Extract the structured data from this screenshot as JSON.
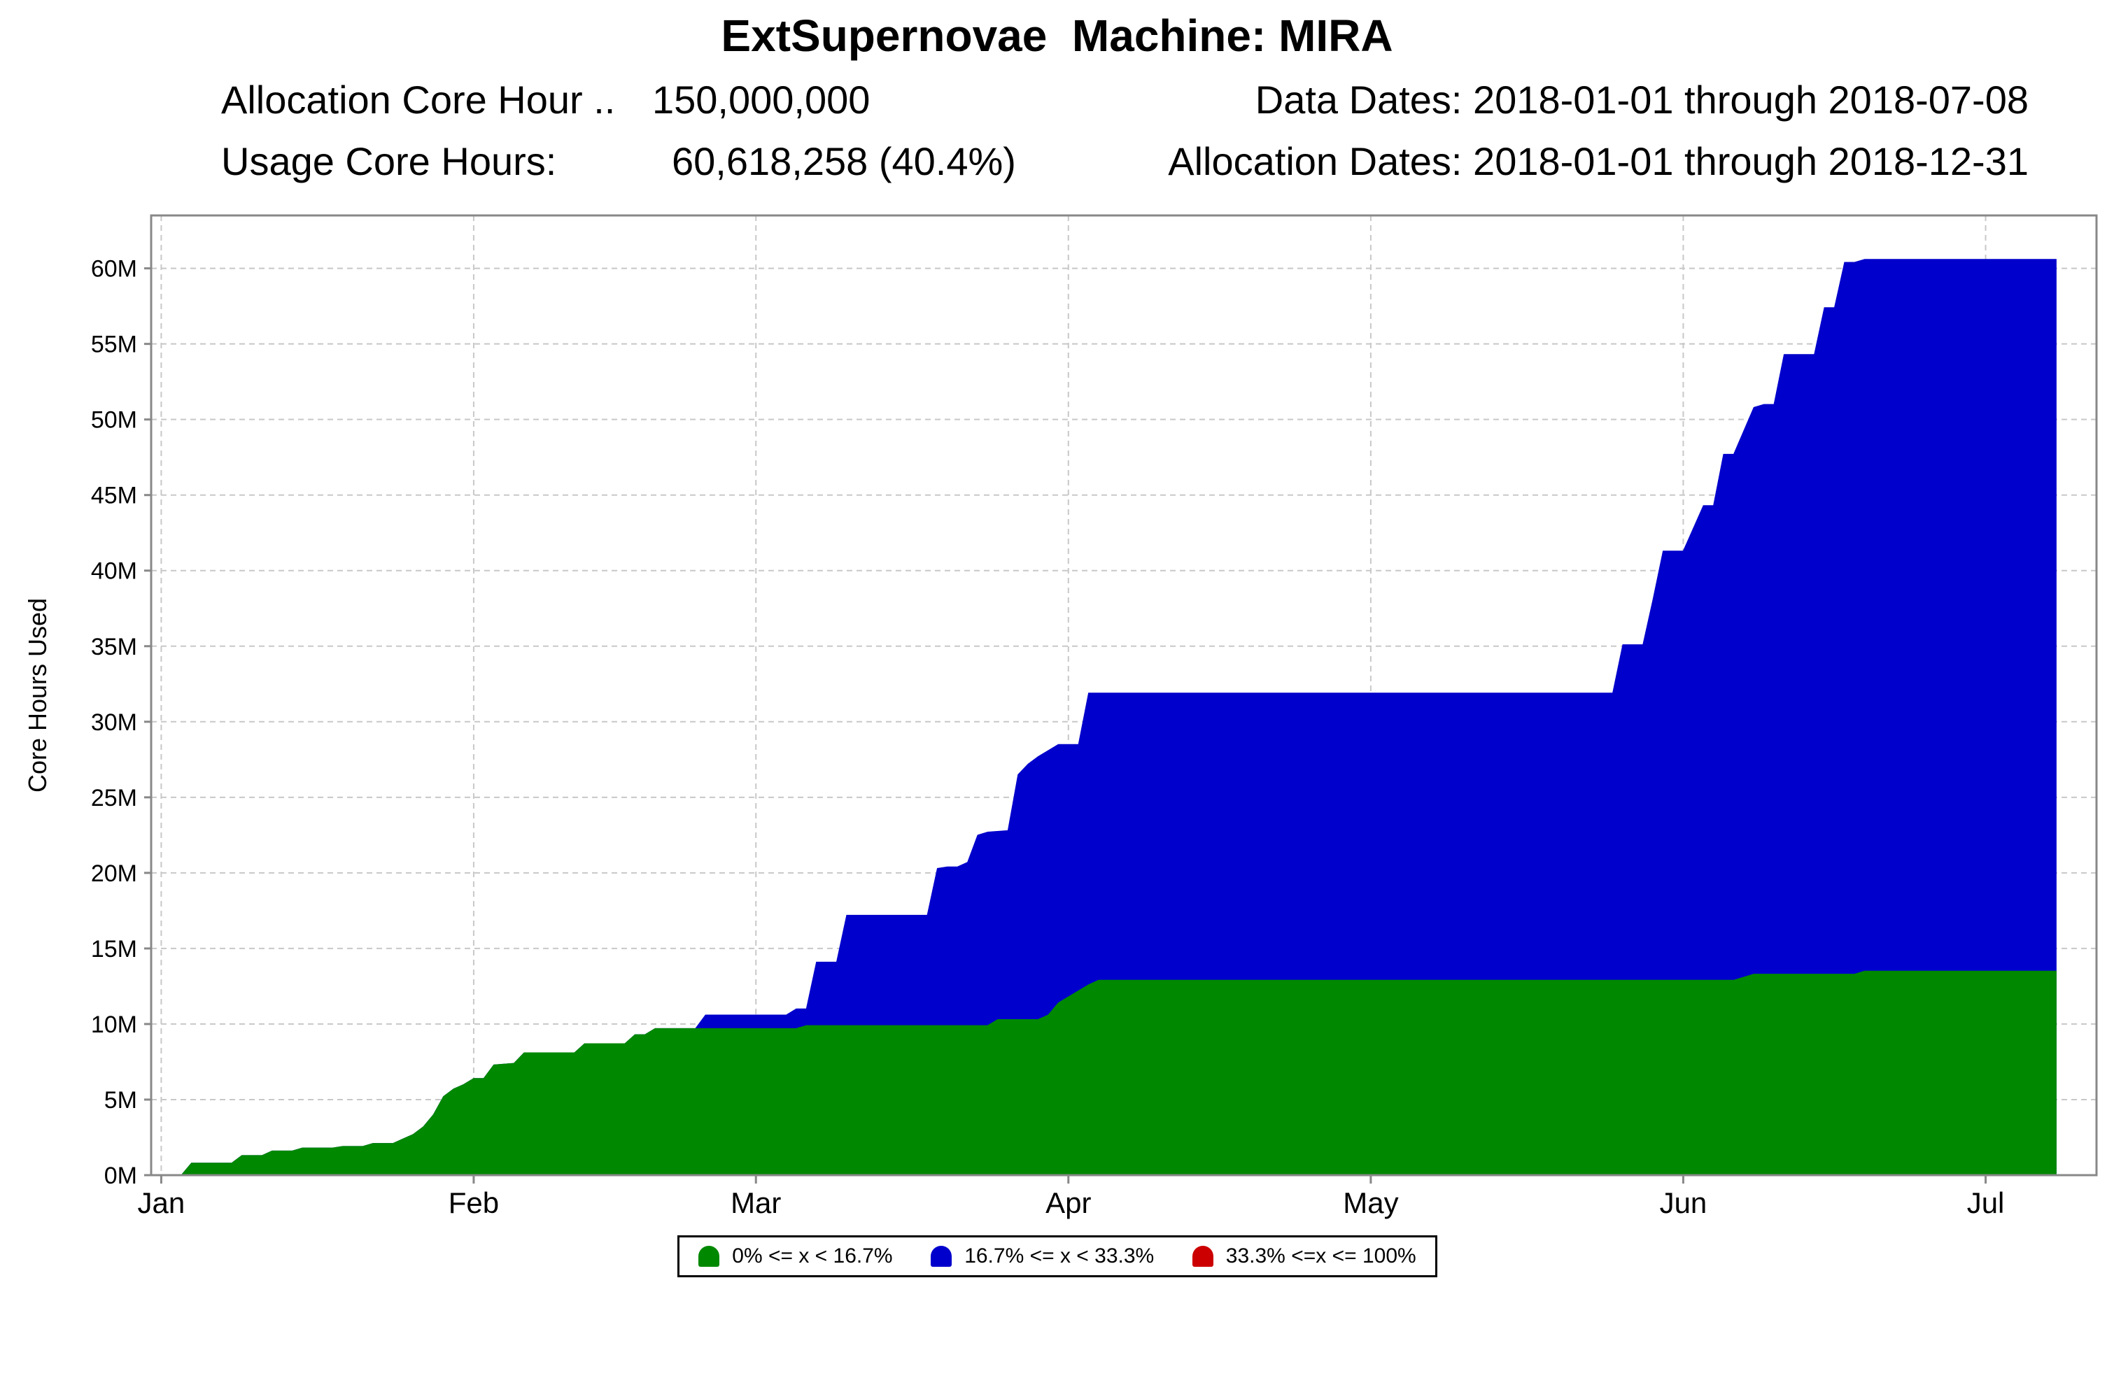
{
  "header": {
    "title": "ExtSupernovae  Machine: MIRA",
    "allocation_label": "Allocation Core Hour ..",
    "allocation_value": "150,000,000",
    "usage_label": "Usage Core Hours:",
    "usage_value": "60,618,258 (40.4%)",
    "data_dates": "Data Dates: 2018-01-01 through 2018-07-08",
    "allocation_dates": "Allocation Dates: 2018-01-01 through 2018-12-31"
  },
  "chart_data": {
    "type": "area",
    "title": "ExtSupernovae  Machine: MIRA",
    "xlabel": "",
    "ylabel": "Core Hours Used",
    "x_range": [
      "2018-01-01",
      "2018-07-08"
    ],
    "ylim": [
      0,
      63500000
    ],
    "y_ticks": [
      0,
      5000000,
      10000000,
      15000000,
      20000000,
      25000000,
      30000000,
      35000000,
      40000000,
      45000000,
      50000000,
      55000000,
      60000000
    ],
    "y_tick_labels": [
      "0M",
      "5M",
      "10M",
      "15M",
      "20M",
      "25M",
      "30M",
      "35M",
      "40M",
      "45M",
      "50M",
      "55M",
      "60M"
    ],
    "x_tick_dates": [
      "2018-01-01",
      "2018-02-01",
      "2018-03-01",
      "2018-04-01",
      "2018-05-01",
      "2018-06-01",
      "2018-07-01"
    ],
    "x_tick_labels": [
      "Jan",
      "Feb",
      "Mar",
      "Apr",
      "May",
      "Jun",
      "Jul"
    ],
    "grid": true,
    "legend_position": "bottom",
    "stacked": false,
    "series": [
      {
        "name": "16.7% <= x < 33.3%",
        "color": "#0000cc",
        "points": [
          [
            "2018-01-01",
            0
          ],
          [
            "2018-01-03",
            0
          ],
          [
            "2018-01-04",
            800000
          ],
          [
            "2018-01-08",
            800000
          ],
          [
            "2018-01-09",
            1300000
          ],
          [
            "2018-01-11",
            1300000
          ],
          [
            "2018-01-12",
            1600000
          ],
          [
            "2018-01-14",
            1600000
          ],
          [
            "2018-01-15",
            1800000
          ],
          [
            "2018-01-18",
            1800000
          ],
          [
            "2018-01-19",
            1900000
          ],
          [
            "2018-01-21",
            1900000
          ],
          [
            "2018-01-22",
            2100000
          ],
          [
            "2018-01-24",
            2100000
          ],
          [
            "2018-01-25",
            2400000
          ],
          [
            "2018-01-26",
            2700000
          ],
          [
            "2018-01-27",
            3200000
          ],
          [
            "2018-01-28",
            4000000
          ],
          [
            "2018-01-29",
            5200000
          ],
          [
            "2018-01-30",
            5700000
          ],
          [
            "2018-01-31",
            6000000
          ],
          [
            "2018-02-01",
            6400000
          ],
          [
            "2018-02-02",
            6400000
          ],
          [
            "2018-02-03",
            7300000
          ],
          [
            "2018-02-05",
            7400000
          ],
          [
            "2018-02-06",
            8100000
          ],
          [
            "2018-02-11",
            8100000
          ],
          [
            "2018-02-12",
            8700000
          ],
          [
            "2018-02-16",
            8700000
          ],
          [
            "2018-02-17",
            9300000
          ],
          [
            "2018-02-18",
            9300000
          ],
          [
            "2018-02-19",
            9700000
          ],
          [
            "2018-02-23",
            9700000
          ],
          [
            "2018-02-24",
            10600000
          ],
          [
            "2018-03-04",
            10600000
          ],
          [
            "2018-03-05",
            11000000
          ],
          [
            "2018-03-06",
            11000000
          ],
          [
            "2018-03-07",
            14100000
          ],
          [
            "2018-03-09",
            14100000
          ],
          [
            "2018-03-10",
            17200000
          ],
          [
            "2018-03-18",
            17200000
          ],
          [
            "2018-03-19",
            20300000
          ],
          [
            "2018-03-20",
            20400000
          ],
          [
            "2018-03-21",
            20400000
          ],
          [
            "2018-03-22",
            20700000
          ],
          [
            "2018-03-23",
            22500000
          ],
          [
            "2018-03-24",
            22700000
          ],
          [
            "2018-03-26",
            22800000
          ],
          [
            "2018-03-27",
            26500000
          ],
          [
            "2018-03-28",
            27200000
          ],
          [
            "2018-03-29",
            27700000
          ],
          [
            "2018-03-30",
            28100000
          ],
          [
            "2018-03-31",
            28500000
          ],
          [
            "2018-04-02",
            28500000
          ],
          [
            "2018-04-03",
            31900000
          ],
          [
            "2018-05-25",
            31900000
          ],
          [
            "2018-05-26",
            35100000
          ],
          [
            "2018-05-28",
            35100000
          ],
          [
            "2018-05-29",
            38100000
          ],
          [
            "2018-05-30",
            41300000
          ],
          [
            "2018-06-01",
            41300000
          ],
          [
            "2018-06-03",
            44300000
          ],
          [
            "2018-06-04",
            44300000
          ],
          [
            "2018-06-05",
            47700000
          ],
          [
            "2018-06-06",
            47700000
          ],
          [
            "2018-06-08",
            50800000
          ],
          [
            "2018-06-09",
            51000000
          ],
          [
            "2018-06-10",
            51000000
          ],
          [
            "2018-06-11",
            54300000
          ],
          [
            "2018-06-14",
            54300000
          ],
          [
            "2018-06-15",
            57400000
          ],
          [
            "2018-06-16",
            57400000
          ],
          [
            "2018-06-17",
            60400000
          ],
          [
            "2018-06-18",
            60400000
          ],
          [
            "2018-06-19",
            60600000
          ],
          [
            "2018-07-08",
            60600000
          ]
        ]
      },
      {
        "name": "0% <= x < 16.7%",
        "color": "#008800",
        "points": [
          [
            "2018-01-01",
            0
          ],
          [
            "2018-01-03",
            0
          ],
          [
            "2018-01-04",
            800000
          ],
          [
            "2018-01-08",
            800000
          ],
          [
            "2018-01-09",
            1300000
          ],
          [
            "2018-01-11",
            1300000
          ],
          [
            "2018-01-12",
            1600000
          ],
          [
            "2018-01-14",
            1600000
          ],
          [
            "2018-01-15",
            1800000
          ],
          [
            "2018-01-18",
            1800000
          ],
          [
            "2018-01-19",
            1900000
          ],
          [
            "2018-01-21",
            1900000
          ],
          [
            "2018-01-22",
            2100000
          ],
          [
            "2018-01-24",
            2100000
          ],
          [
            "2018-01-25",
            2400000
          ],
          [
            "2018-01-26",
            2700000
          ],
          [
            "2018-01-27",
            3200000
          ],
          [
            "2018-01-28",
            4000000
          ],
          [
            "2018-01-29",
            5200000
          ],
          [
            "2018-01-30",
            5700000
          ],
          [
            "2018-01-31",
            6000000
          ],
          [
            "2018-02-01",
            6400000
          ],
          [
            "2018-02-02",
            6400000
          ],
          [
            "2018-02-03",
            7300000
          ],
          [
            "2018-02-05",
            7400000
          ],
          [
            "2018-02-06",
            8100000
          ],
          [
            "2018-02-11",
            8100000
          ],
          [
            "2018-02-12",
            8700000
          ],
          [
            "2018-02-16",
            8700000
          ],
          [
            "2018-02-17",
            9300000
          ],
          [
            "2018-02-18",
            9300000
          ],
          [
            "2018-02-19",
            9700000
          ],
          [
            "2018-03-05",
            9700000
          ],
          [
            "2018-03-06",
            9900000
          ],
          [
            "2018-03-24",
            9900000
          ],
          [
            "2018-03-25",
            10300000
          ],
          [
            "2018-03-29",
            10300000
          ],
          [
            "2018-03-30",
            10600000
          ],
          [
            "2018-03-31",
            11400000
          ],
          [
            "2018-04-01",
            11800000
          ],
          [
            "2018-04-02",
            12200000
          ],
          [
            "2018-04-03",
            12600000
          ],
          [
            "2018-04-04",
            12900000
          ],
          [
            "2018-06-06",
            12900000
          ],
          [
            "2018-06-08",
            13300000
          ],
          [
            "2018-06-18",
            13300000
          ],
          [
            "2018-06-19",
            13500000
          ],
          [
            "2018-07-08",
            13500000
          ]
        ]
      },
      {
        "name": "33.3% <=x <= 100%",
        "color": "#cc0000",
        "points": []
      }
    ]
  }
}
